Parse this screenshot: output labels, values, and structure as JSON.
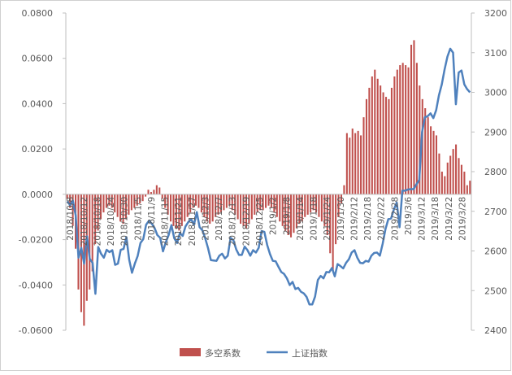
{
  "chart_data": {
    "type": "bar+line",
    "title": "",
    "grid": false,
    "legend": "bottom",
    "left_axis": {
      "ylim": [
        -0.06,
        0.08
      ],
      "ticks": [
        "-0.0600",
        "-0.0400",
        "-0.0200",
        "0.0000",
        "0.0200",
        "0.0400",
        "0.0600",
        "0.0800"
      ]
    },
    "right_axis": {
      "ylim": [
        2400,
        3200
      ],
      "ticks": [
        "2400",
        "2500",
        "2600",
        "2700",
        "2800",
        "2900",
        "3000",
        "3100",
        "3200"
      ]
    },
    "x_tick_labels": [
      "2018/10/8",
      "2018/10/12",
      "2018/10/18",
      "2018/10/24",
      "2018/10/30",
      "2018/11/5",
      "2018/11/9",
      "2018/11/15",
      "2018/11/21",
      "2018/11/27",
      "2018/12/3",
      "2018/12/7",
      "2018/12/13",
      "2018/12/19",
      "2018/12/25",
      "2019/1/2",
      "2019/1/8",
      "2019/1/14",
      "2019/1/18",
      "2019/1/24",
      "2019/1/30",
      "2019/2/12",
      "2019/2/18",
      "2019/2/22",
      "2019/2/28",
      "2019/3/6",
      "2019/3/12",
      "2019/3/18",
      "2019/3/22",
      "2019/3/28"
    ],
    "series": [
      {
        "name": "多空系数",
        "axis": "left",
        "type": "bar",
        "color": "#c0504d",
        "values": [
          -0.002,
          -0.006,
          -0.014,
          -0.024,
          -0.042,
          -0.052,
          -0.058,
          -0.047,
          -0.042,
          -0.034,
          -0.022,
          -0.016,
          -0.011,
          -0.008,
          -0.006,
          -0.005,
          -0.006,
          -0.008,
          -0.01,
          -0.012,
          -0.013,
          -0.011,
          -0.009,
          -0.007,
          -0.006,
          -0.005,
          -0.004,
          -0.003,
          -0.001,
          0.002,
          0.001,
          0.002,
          0.004,
          0.003,
          -0.002,
          -0.006,
          -0.009,
          -0.012,
          -0.014,
          -0.015,
          -0.016,
          -0.014,
          -0.012,
          -0.01,
          -0.008,
          -0.006,
          -0.005,
          -0.006,
          -0.008,
          -0.01,
          -0.012,
          -0.013,
          -0.012,
          -0.01,
          -0.009,
          -0.008,
          -0.007,
          -0.006,
          -0.005,
          -0.007,
          -0.009,
          -0.011,
          -0.013,
          -0.014,
          -0.015,
          -0.013,
          -0.011,
          -0.009,
          -0.008,
          -0.007,
          -0.007,
          -0.006,
          -0.005,
          -0.006,
          -0.008,
          -0.01,
          -0.012,
          -0.014,
          -0.016,
          -0.018,
          -0.019,
          -0.017,
          -0.015,
          -0.013,
          -0.012,
          -0.01,
          -0.009,
          -0.008,
          -0.007,
          -0.008,
          -0.01,
          -0.012,
          -0.014,
          -0.018,
          -0.026,
          -0.034,
          -0.022,
          -0.01,
          -0.004,
          0.004,
          0.027,
          0.025,
          0.029,
          0.027,
          0.028,
          0.026,
          0.034,
          0.042,
          0.047,
          0.052,
          0.055,
          0.051,
          0.048,
          0.045,
          0.043,
          0.042,
          0.047,
          0.052,
          0.055,
          0.057,
          0.058,
          0.057,
          0.056,
          0.066,
          0.068,
          0.058,
          0.048,
          0.042,
          0.038,
          0.034,
          0.03,
          0.028,
          0.026,
          0.018,
          0.01,
          0.008,
          0.014,
          0.017,
          0.02,
          0.022,
          0.016,
          0.013,
          0.01,
          0.004,
          0.006
        ]
      },
      {
        "name": "上证指数",
        "axis": "right",
        "type": "line",
        "color": "#4f81bd",
        "values": [
          2725,
          2716,
          2727,
          2690,
          2583,
          2608,
          2568,
          2637,
          2580,
          2570,
          2492,
          2610,
          2593,
          2583,
          2603,
          2597,
          2602,
          2565,
          2568,
          2603,
          2605,
          2635,
          2578,
          2545,
          2568,
          2587,
          2620,
          2630,
          2666,
          2676,
          2669,
          2658,
          2640,
          2633,
          2599,
          2622,
          2640,
          2665,
          2632,
          2620,
          2645,
          2638,
          2662,
          2673,
          2680,
          2666,
          2698,
          2660,
          2652,
          2632,
          2607,
          2577,
          2576,
          2575,
          2588,
          2593,
          2581,
          2588,
          2633,
          2627,
          2604,
          2590,
          2590,
          2611,
          2602,
          2588,
          2602,
          2596,
          2608,
          2650,
          2648,
          2615,
          2592,
          2575,
          2574,
          2560,
          2547,
          2542,
          2531,
          2514,
          2522,
          2504,
          2507,
          2497,
          2493,
          2484,
          2465,
          2465,
          2485,
          2527,
          2537,
          2531,
          2547,
          2546,
          2557,
          2536,
          2567,
          2562,
          2556,
          2570,
          2579,
          2596,
          2602,
          2583,
          2570,
          2569,
          2575,
          2573,
          2588,
          2595,
          2596,
          2588,
          2618,
          2655,
          2680,
          2682,
          2705,
          2722,
          2660,
          2752,
          2752,
          2755,
          2756,
          2756,
          2768,
          2779,
          2900,
          2937,
          2940,
          2947,
          2935,
          2955,
          2993,
          3020,
          3058,
          3090,
          3110,
          3100,
          2970,
          3050,
          3055,
          3020,
          3008,
          3000
        ]
      }
    ]
  }
}
